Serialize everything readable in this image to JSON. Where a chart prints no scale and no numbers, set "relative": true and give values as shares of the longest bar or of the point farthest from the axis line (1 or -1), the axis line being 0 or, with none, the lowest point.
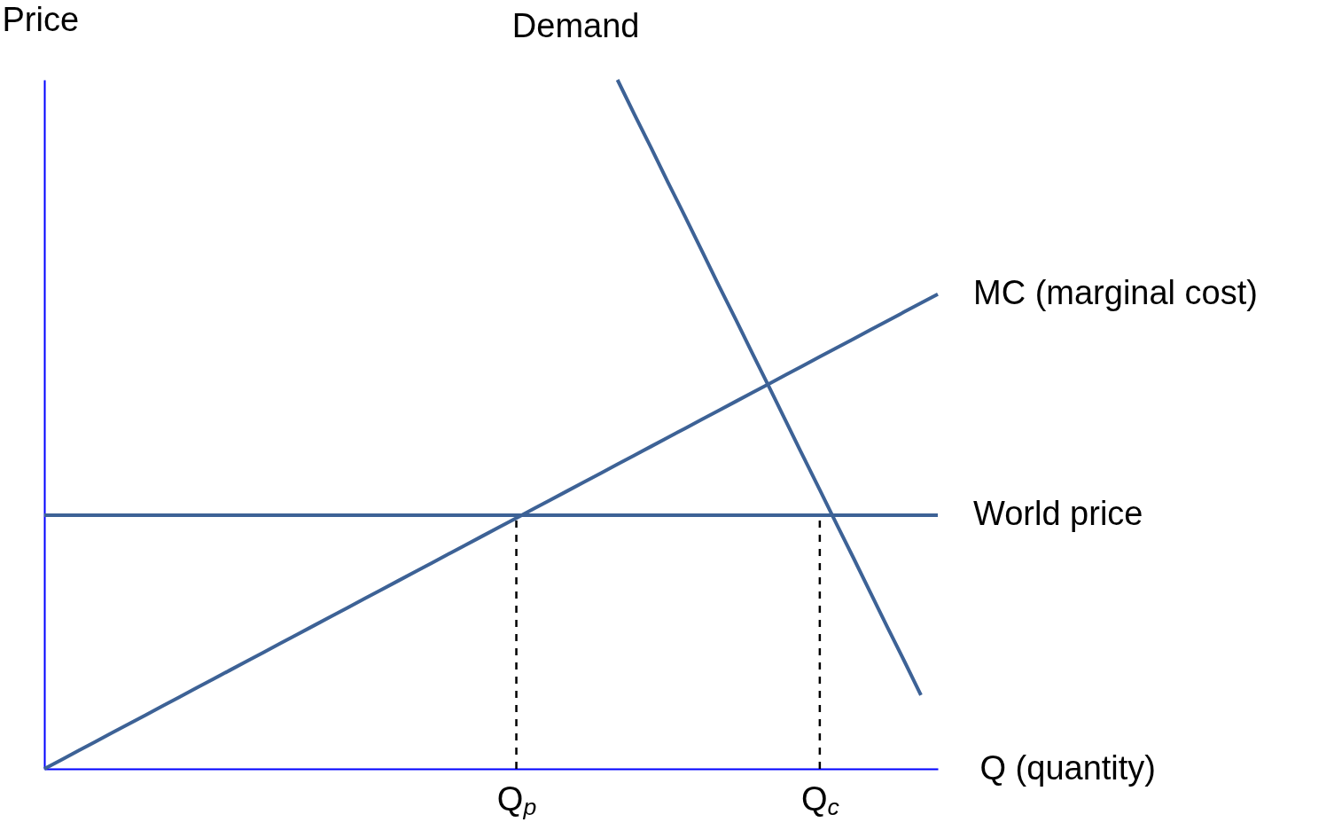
{
  "chart_data": {
    "type": "line",
    "relative": true,
    "ylabel": "Price",
    "xlabel": "Q (quantity)",
    "legend": false,
    "grid": false,
    "marker": "none",
    "categories": [
      null,
      null,
      null,
      null,
      null,
      null,
      null,
      null,
      null,
      null,
      null,
      null,
      null,
      null,
      null,
      null,
      null,
      null,
      null,
      null,
      null,
      null,
      null,
      null,
      null,
      null,
      null,
      null,
      "Q$_{p}$",
      null,
      null,
      null,
      null,
      null,
      null,
      null,
      null,
      null,
      null,
      null,
      null,
      null,
      null,
      null,
      null,
      null,
      "Q$_{c}$",
      null,
      null,
      null,
      null,
      null,
      null,
      null
    ],
    "series": [
      {
        "name": "Demand",
        "color": "#3d6296",
        "values": [
          null,
          null,
          null,
          null,
          null,
          null,
          null,
          null,
          null,
          null,
          null,
          null,
          null,
          null,
          null,
          null,
          null,
          null,
          null,
          null,
          null,
          null,
          null,
          null,
          null,
          null,
          null,
          null,
          null,
          null,
          null,
          null,
          null,
          null,
          1.0,
          0.95,
          0.901,
          0.851,
          0.802,
          0.752,
          0.702,
          0.653,
          0.603,
          0.554,
          0.504,
          0.454,
          0.405,
          0.355,
          0.306,
          0.256,
          0.206,
          0.157,
          0.107,
          null
        ]
      },
      {
        "name": "MC (marginal cost)",
        "color": "#3d6296",
        "values": [
          0,
          0.013,
          0.026,
          0.039,
          0.052,
          0.065,
          0.078,
          0.091,
          0.104,
          0.117,
          0.13,
          0.143,
          0.156,
          0.169,
          0.182,
          0.195,
          0.208,
          0.221,
          0.234,
          0.247,
          0.26,
          0.273,
          0.286,
          0.299,
          0.312,
          0.325,
          0.338,
          0.351,
          0.364,
          0.377,
          0.39,
          0.403,
          0.416,
          0.429,
          0.442,
          0.455,
          0.468,
          0.481,
          0.494,
          0.507,
          0.52,
          0.533,
          0.546,
          0.559,
          0.572,
          0.585,
          0.598,
          0.611,
          0.624,
          0.637,
          0.65,
          0.663,
          0.676,
          0.689
        ]
      },
      {
        "name": "World price",
        "color": "#3d6296",
        "values": [
          0.368,
          0.368,
          0.368,
          0.368,
          0.368,
          0.368,
          0.368,
          0.368,
          0.368,
          0.368,
          0.368,
          0.368,
          0.368,
          0.368,
          0.368,
          0.368,
          0.368,
          0.368,
          0.368,
          0.368,
          0.368,
          0.368,
          0.368,
          0.368,
          0.368,
          0.368,
          0.368,
          0.368,
          0.368,
          0.368,
          0.368,
          0.368,
          0.368,
          0.368,
          0.368,
          0.368,
          0.368,
          0.368,
          0.368,
          0.368,
          0.368,
          0.368,
          0.368,
          0.368,
          0.368,
          0.368,
          0.368,
          0.368,
          0.368,
          0.368,
          0.368,
          0.368,
          0.368,
          0.368
        ]
      }
    ],
    "ref_lines": [
      {
        "axis": "x",
        "value": "Q$_{p}$",
        "color": "#000000",
        "line_style": "dashed"
      },
      {
        "axis": "x",
        "value": "Q$_{c}$",
        "color": "#000000",
        "line_style": "dashed"
      }
    ]
  }
}
